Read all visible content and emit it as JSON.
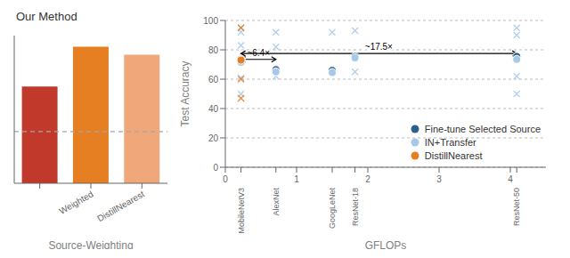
{
  "chart_data": [
    {
      "type": "bar",
      "title": "Our Method",
      "x_label": "Source-Weighting",
      "categories": [
        null,
        "Weighted",
        "DistillNearest"
      ],
      "values": [
        65.5,
        92.5,
        87.0
      ],
      "colors": [
        "#c0392b",
        "#e67e22",
        "#f0a87a"
      ],
      "ylim": [
        0,
        100
      ],
      "tick_labels": "x",
      "hline": {
        "value": 35.0,
        "color": "#a0a8b0",
        "line_style": "dashed"
      }
    },
    {
      "type": "scatter",
      "x_label": "GFLOPs",
      "y_label": "Test Accuracy",
      "xlim": [
        0,
        4.5
      ],
      "ylim": [
        0,
        100
      ],
      "xticks": [
        0,
        1,
        2,
        3,
        4,
        {
          "value": 0.22,
          "label": "MobileNetV3"
        },
        {
          "value": 0.71,
          "label": "AlexNet"
        },
        {
          "value": 1.5,
          "label": "GoogLeNet"
        },
        {
          "value": 1.82,
          "label": "ResNet-18"
        },
        {
          "value": 4.09,
          "label": "ResNet-50"
        }
      ],
      "yticks": [
        0,
        20,
        40,
        60,
        80,
        100
      ],
      "grid": true,
      "legend": "lower right",
      "series": [
        {
          "color": "#a8c8e8",
          "marker": "x",
          "x": [
            0.22,
            0.22,
            0.22,
            0.22,
            0.22,
            0.71,
            0.71,
            0.71,
            1.5,
            1.5,
            1.82,
            1.82,
            4.09,
            4.09,
            4.09,
            4.09
          ],
          "values": [
            95,
            92,
            83,
            61,
            50,
            92,
            82,
            62,
            92,
            65,
            93,
            65,
            95,
            90,
            62,
            50
          ]
        },
        {
          "color": "#e67e22",
          "marker": "x",
          "x": [
            0.22,
            0.22,
            0.22
          ],
          "values": [
            95,
            60,
            47
          ]
        },
        {
          "name": "Fine-tune Selected Source",
          "color": "#2c5f8a",
          "marker": "o",
          "x": [
            0.22,
            0.71,
            1.5,
            1.82,
            4.09
          ],
          "values": [
            73.5,
            66.5,
            66.0,
            75.5,
            75.5
          ]
        },
        {
          "name": "IN+Transfer",
          "color": "#a8c8e8",
          "marker": "o",
          "x": [
            0.22,
            0.71,
            1.5,
            1.82,
            4.09
          ],
          "values": [
            71.5,
            65.0,
            64.5,
            74.5,
            73.5
          ]
        },
        {
          "name": "DistillNearest",
          "color": "#e67e22",
          "marker": "o",
          "x": [
            0.22
          ],
          "values": [
            73.0
          ]
        }
      ],
      "annotations": [
        {
          "text": "~6.4×",
          "x_start": 0.22,
          "x_end": 0.71,
          "y": 73.5
        },
        {
          "text": "~17.5×",
          "x_start": 0.22,
          "x_end": 4.09,
          "y": 77.5
        }
      ]
    }
  ]
}
